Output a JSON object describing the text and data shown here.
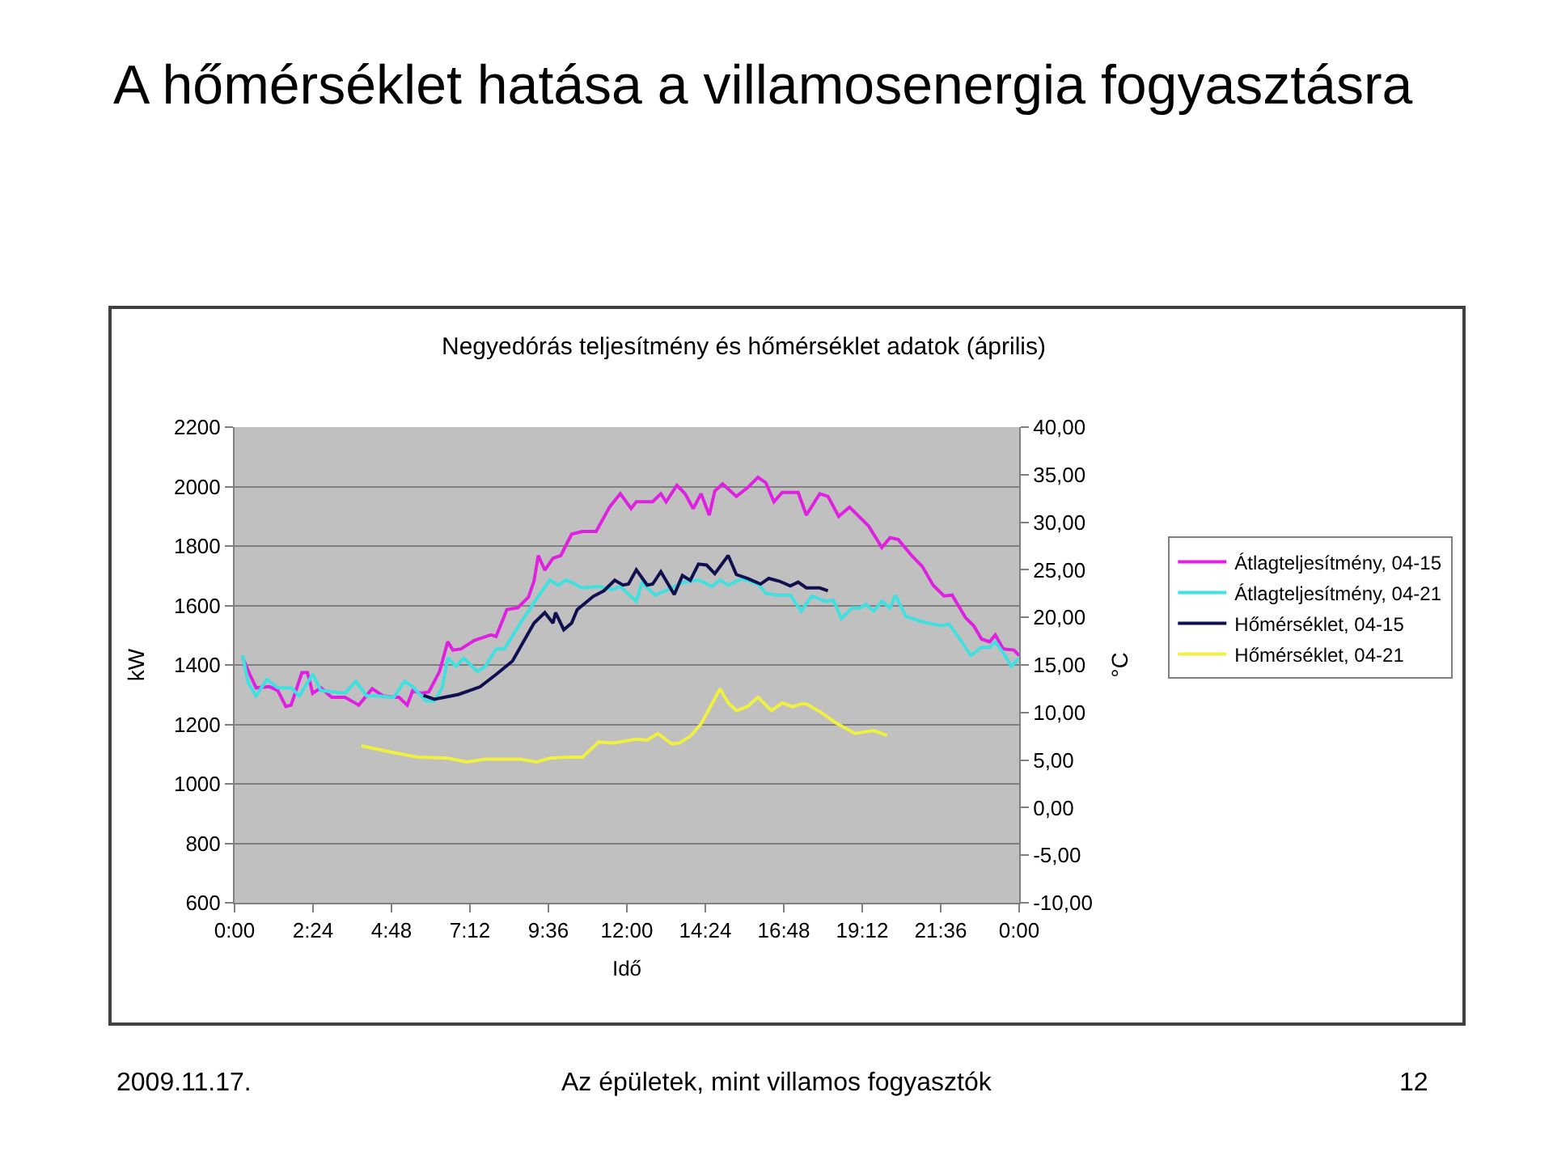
{
  "chart_data": {
    "type": "line",
    "title": "A hőmérséklet hatása a villamosenergia fogyasztásra",
    "subtitle": "Negyedórás teljesítmény és hőmérséklet adatok (április)",
    "xlabel": "Idő",
    "ylabel": "kW",
    "y2label": "°C",
    "xlim": [
      0,
      24
    ],
    "xticks": [
      {
        "value": 0,
        "label": "0:00"
      },
      {
        "value": 2.4,
        "label": "2:24"
      },
      {
        "value": 4.8,
        "label": "4:48"
      },
      {
        "value": 7.2,
        "label": "7:12"
      },
      {
        "value": 9.6,
        "label": "9:36"
      },
      {
        "value": 12,
        "label": "12:00"
      },
      {
        "value": 14.4,
        "label": "14:24"
      },
      {
        "value": 16.8,
        "label": "16:48"
      },
      {
        "value": 19.2,
        "label": "19:12"
      },
      {
        "value": 21.6,
        "label": "21:36"
      },
      {
        "value": 24,
        "label": "0:00"
      }
    ],
    "ylim": [
      600,
      2200
    ],
    "yticks": [
      600,
      800,
      1000,
      1200,
      1400,
      1600,
      1800,
      2000,
      2200
    ],
    "y2lim": [
      -10,
      40
    ],
    "y2ticks": [
      {
        "value": -10,
        "label": "-10,00"
      },
      {
        "value": -5,
        "label": "-5,00"
      },
      {
        "value": 0,
        "label": "0,00"
      },
      {
        "value": 5,
        "label": "5,00"
      },
      {
        "value": 10,
        "label": "10,00"
      },
      {
        "value": 15,
        "label": "15,00"
      },
      {
        "value": 20,
        "label": "20,00"
      },
      {
        "value": 25,
        "label": "25,00"
      },
      {
        "value": 30,
        "label": "30,00"
      },
      {
        "value": 35,
        "label": "35,00"
      },
      {
        "value": 40,
        "label": "40,00"
      }
    ],
    "grid": "y",
    "legend": "right",
    "marker": "none",
    "line_style": "solid",
    "annotations": [
      "2009.11.17.",
      "Az épületek, mint villamos fogyasztók",
      "12"
    ],
    "series": [
      {
        "name": "Átlagteljesítmény, 04-15",
        "color": "#e020e0",
        "x": [
          0.25,
          0.5,
          0.66,
          1.07,
          1.32,
          1.57,
          1.73,
          2.06,
          2.23,
          2.39,
          2.64,
          2.97,
          3.38,
          3.8,
          4.21,
          4.54,
          4.87,
          5.03,
          5.28,
          5.45,
          5.69,
          5.94,
          6.27,
          6.52,
          6.68,
          6.93,
          7.34,
          7.84,
          8.0,
          8.33,
          8.66,
          8.99,
          9.16,
          9.29,
          9.49,
          9.74,
          9.98,
          10.31,
          10.64,
          11.06,
          11.47,
          11.8,
          12.13,
          12.29,
          12.79,
          13.04,
          13.2,
          13.53,
          13.78,
          14.03,
          14.27,
          14.52,
          14.69,
          14.93,
          15.35,
          15.68,
          16.01,
          16.25,
          16.5,
          16.75,
          17.24,
          17.49,
          17.9,
          18.15,
          18.48,
          18.81,
          19.39,
          19.8,
          20.05,
          20.3,
          20.71,
          21.04,
          21.37,
          21.7,
          21.95,
          22.36,
          22.61,
          22.85,
          23.1,
          23.27,
          23.51,
          23.84,
          24.0
        ],
        "values": [
          1423,
          1360,
          1323,
          1327,
          1314,
          1260,
          1265,
          1374,
          1374,
          1305,
          1323,
          1291,
          1291,
          1265,
          1320,
          1296,
          1291,
          1291,
          1265,
          1314,
          1305,
          1309,
          1378,
          1478,
          1450,
          1454,
          1483,
          1501,
          1496,
          1586,
          1592,
          1628,
          1682,
          1768,
          1719,
          1759,
          1768,
          1840,
          1849,
          1849,
          1931,
          1976,
          1926,
          1949,
          1949,
          1976,
          1949,
          2004,
          1976,
          1926,
          1976,
          1904,
          1985,
          2009,
          1967,
          1995,
          2031,
          2013,
          1949,
          1980,
          1980,
          1904,
          1976,
          1967,
          1900,
          1931,
          1868,
          1795,
          1828,
          1822,
          1768,
          1731,
          1668,
          1632,
          1635,
          1559,
          1532,
          1487,
          1478,
          1501,
          1454,
          1450,
          1432
        ]
      },
      {
        "name": "Átlagteljesítmény, 04-21",
        "color": "#40e0e0",
        "x": [
          0.25,
          0.41,
          0.66,
          0.99,
          1.32,
          1.73,
          1.98,
          2.39,
          2.64,
          3.05,
          3.38,
          3.71,
          4.04,
          4.37,
          4.87,
          5.2,
          5.45,
          5.86,
          6.11,
          6.35,
          6.52,
          6.77,
          7.01,
          7.43,
          7.67,
          8.0,
          8.25,
          8.75,
          9.24,
          9.65,
          9.9,
          10.15,
          10.64,
          11.14,
          11.55,
          11.8,
          12.29,
          12.46,
          12.87,
          13.37,
          13.7,
          14.19,
          14.6,
          14.85,
          15.1,
          15.51,
          16.01,
          16.25,
          16.58,
          17.0,
          17.33,
          17.66,
          18.07,
          18.32,
          18.56,
          18.89,
          19.14,
          19.31,
          19.55,
          19.8,
          20.05,
          20.21,
          20.54,
          21.04,
          21.62,
          21.86,
          22.19,
          22.52,
          22.85,
          23.1,
          23.27,
          23.51,
          23.76,
          24.0
        ],
        "values": [
          1432,
          1342,
          1296,
          1351,
          1323,
          1323,
          1296,
          1369,
          1314,
          1309,
          1305,
          1345,
          1296,
          1296,
          1291,
          1345,
          1327,
          1278,
          1278,
          1323,
          1423,
          1396,
          1423,
          1378,
          1396,
          1454,
          1454,
          1541,
          1623,
          1686,
          1668,
          1686,
          1659,
          1664,
          1653,
          1664,
          1614,
          1677,
          1635,
          1659,
          1677,
          1686,
          1664,
          1686,
          1668,
          1690,
          1672,
          1641,
          1635,
          1635,
          1581,
          1632,
          1614,
          1617,
          1556,
          1592,
          1592,
          1604,
          1581,
          1614,
          1592,
          1635,
          1563,
          1545,
          1532,
          1537,
          1487,
          1432,
          1459,
          1459,
          1478,
          1441,
          1396,
          1423
        ]
      },
      {
        "name": "Hőmérséklet, 04-15",
        "color": "#101050",
        "axis": "y2",
        "x": [
          5.78,
          6.11,
          6.85,
          7.51,
          8.0,
          8.5,
          9.16,
          9.49,
          9.74,
          9.82,
          10.07,
          10.31,
          10.48,
          10.97,
          11.3,
          11.63,
          11.88,
          12.05,
          12.29,
          12.62,
          12.79,
          13.04,
          13.45,
          13.7,
          13.94,
          14.19,
          14.44,
          14.69,
          15.1,
          15.35,
          15.68,
          16.09,
          16.34,
          16.67,
          17.0,
          17.24,
          17.49,
          17.9,
          18.15
        ],
        "values": [
          11.8,
          11.4,
          11.9,
          12.7,
          14.0,
          15.4,
          19.4,
          20.5,
          19.4,
          20.5,
          18.7,
          19.4,
          20.8,
          22.2,
          22.8,
          23.9,
          23.4,
          23.5,
          25.0,
          23.4,
          23.5,
          24.8,
          22.4,
          24.4,
          23.9,
          25.6,
          25.5,
          24.6,
          26.5,
          24.5,
          24.1,
          23.5,
          24.1,
          23.8,
          23.3,
          23.7,
          23.1,
          23.1,
          22.8
        ]
      },
      {
        "name": "Hőmérséklet, 04-21",
        "color": "#f0f040",
        "axis": "y2",
        "x": [
          3.88,
          4.7,
          5.61,
          6.52,
          7.1,
          7.67,
          8.33,
          8.75,
          9.24,
          9.65,
          10.15,
          10.64,
          11.14,
          11.63,
          12.29,
          12.62,
          12.95,
          13.37,
          13.61,
          13.94,
          14.27,
          14.6,
          14.85,
          15.1,
          15.35,
          15.68,
          16.01,
          16.42,
          16.75,
          17.08,
          17.33,
          17.49,
          17.9,
          18.4,
          18.98,
          19.55,
          19.96
        ],
        "values": [
          6.5,
          5.9,
          5.3,
          5.2,
          4.8,
          5.1,
          5.1,
          5.1,
          4.8,
          5.2,
          5.3,
          5.3,
          6.9,
          6.8,
          7.2,
          7.1,
          7.8,
          6.7,
          6.8,
          7.5,
          8.8,
          10.9,
          12.5,
          11.0,
          10.2,
          10.6,
          11.6,
          10.2,
          11.0,
          10.6,
          10.9,
          10.9,
          10.1,
          8.9,
          7.8,
          8.1,
          7.6
        ]
      }
    ]
  }
}
